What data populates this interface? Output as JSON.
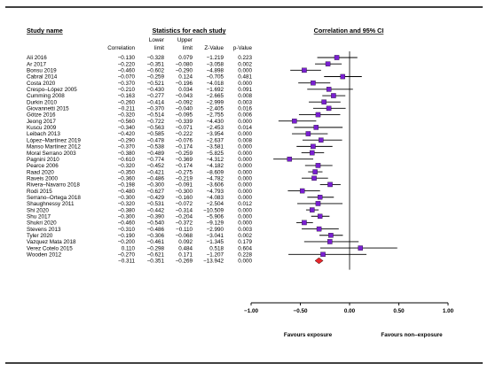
{
  "chart_data": {
    "type": "forest",
    "headers": {
      "study": "Study name",
      "stats_group": "Statistics for each study",
      "plot_title": "Correlation and 95% CI",
      "correlation": "Correlation",
      "lower_1": "Lower",
      "lower_2": "limit",
      "upper_1": "Upper",
      "upper_2": "limit",
      "z": "Z-Value",
      "p": "p-Value"
    },
    "studies": [
      {
        "name": "Ali 2016",
        "r": "−0.130",
        "lower": "−0.328",
        "upper": "0.079",
        "z": "−1.219",
        "p": "0.223",
        "rv": -0.13,
        "lv": -0.328,
        "uv": 0.079
      },
      {
        "name": "Ar 2017",
        "r": "−0.220",
        "lower": "−0.351",
        "upper": "−0.080",
        "z": "−3.058",
        "p": "0.002",
        "rv": -0.22,
        "lv": -0.351,
        "uv": -0.08
      },
      {
        "name": "Bonsu 2019",
        "r": "−0.460",
        "lower": "−0.602",
        "upper": "−0.290",
        "z": "−4.898",
        "p": "0.000",
        "rv": -0.46,
        "lv": -0.602,
        "uv": -0.29
      },
      {
        "name": "Cabral 2014",
        "r": "−0.070",
        "lower": "−0.259",
        "upper": "0.124",
        "z": "−0.705",
        "p": "0.481",
        "rv": -0.07,
        "lv": -0.259,
        "uv": 0.124
      },
      {
        "name": "Costa 2020",
        "r": "−0.370",
        "lower": "−0.521",
        "upper": "−0.196",
        "z": "−4.018",
        "p": "0.000",
        "rv": -0.37,
        "lv": -0.521,
        "uv": -0.196
      },
      {
        "name": "Crespo–López 2005",
        "r": "−0.210",
        "lower": "−0.430",
        "upper": "0.034",
        "z": "−1.692",
        "p": "0.091",
        "rv": -0.21,
        "lv": -0.43,
        "uv": 0.034
      },
      {
        "name": "Cumming 2008",
        "r": "−0.163",
        "lower": "−0.277",
        "upper": "−0.043",
        "z": "−2.665",
        "p": "0.008",
        "rv": -0.163,
        "lv": -0.277,
        "uv": -0.043
      },
      {
        "name": "Durkin 2010",
        "r": "−0.260",
        "lower": "−0.414",
        "upper": "−0.092",
        "z": "−2.999",
        "p": "0.003",
        "rv": -0.26,
        "lv": -0.414,
        "uv": -0.092
      },
      {
        "name": "Giovannetti 2015",
        "r": "−0.211",
        "lower": "−0.370",
        "upper": "−0.040",
        "z": "−2.405",
        "p": "0.016",
        "rv": -0.211,
        "lv": -0.37,
        "uv": -0.04
      },
      {
        "name": "Götze 2016",
        "r": "−0.320",
        "lower": "−0.514",
        "upper": "−0.095",
        "z": "−2.755",
        "p": "0.006",
        "rv": -0.32,
        "lv": -0.514,
        "uv": -0.095
      },
      {
        "name": "Jeong 2017",
        "r": "−0.560",
        "lower": "−0.722",
        "upper": "−0.339",
        "z": "−4.430",
        "p": "0.000",
        "rv": -0.56,
        "lv": -0.722,
        "uv": -0.339
      },
      {
        "name": "Kuscu 2009",
        "r": "−0.340",
        "lower": "−0.563",
        "upper": "−0.071",
        "z": "−2.453",
        "p": "0.014",
        "rv": -0.34,
        "lv": -0.563,
        "uv": -0.071
      },
      {
        "name": "Leibach 2013",
        "r": "−0.420",
        "lower": "−0.585",
        "upper": "−0.222",
        "z": "−3.954",
        "p": "0.000",
        "rv": -0.42,
        "lv": -0.585,
        "uv": -0.222
      },
      {
        "name": "López–Martínez 2019",
        "r": "−0.290",
        "lower": "−0.478",
        "upper": "−0.076",
        "z": "−2.637",
        "p": "0.008",
        "rv": -0.29,
        "lv": -0.478,
        "uv": -0.076
      },
      {
        "name": "Manso Martínez 2012",
        "r": "−0.370",
        "lower": "−0.538",
        "upper": "−0.174",
        "z": "−3.581",
        "p": "0.000",
        "rv": -0.37,
        "lv": -0.538,
        "uv": -0.174
      },
      {
        "name": "Moral Serrano 2003",
        "r": "−0.380",
        "lower": "−0.489",
        "upper": "−0.259",
        "z": "−5.825",
        "p": "0.000",
        "rv": -0.38,
        "lv": -0.489,
        "uv": -0.259
      },
      {
        "name": "Pagnini 2010",
        "r": "−0.610",
        "lower": "−0.774",
        "upper": "−0.369",
        "z": "−4.312",
        "p": "0.000",
        "rv": -0.61,
        "lv": -0.774,
        "uv": -0.369
      },
      {
        "name": "Pearce 2006",
        "r": "−0.320",
        "lower": "−0.452",
        "upper": "−0.174",
        "z": "−4.182",
        "p": "0.000",
        "rv": -0.32,
        "lv": -0.452,
        "uv": -0.174
      },
      {
        "name": "Raad 2020",
        "r": "−0.350",
        "lower": "−0.421",
        "upper": "−0.275",
        "z": "−8.609",
        "p": "0.000",
        "rv": -0.35,
        "lv": -0.421,
        "uv": -0.275
      },
      {
        "name": "Raveis 2000",
        "r": "−0.360",
        "lower": "−0.486",
        "upper": "−0.219",
        "z": "−4.782",
        "p": "0.000",
        "rv": -0.36,
        "lv": -0.486,
        "uv": -0.219
      },
      {
        "name": "Rivera–Navarro 2018",
        "r": "−0.198",
        "lower": "−0.300",
        "upper": "−0.091",
        "z": "−3.606",
        "p": "0.000",
        "rv": -0.198,
        "lv": -0.3,
        "uv": -0.091
      },
      {
        "name": "Rodi 2015",
        "r": "−0.480",
        "lower": "−0.627",
        "upper": "−0.300",
        "z": "−4.793",
        "p": "0.000",
        "rv": -0.48,
        "lv": -0.627,
        "uv": -0.3
      },
      {
        "name": "Serrano–Ortega 2018",
        "r": "−0.300",
        "lower": "−0.429",
        "upper": "−0.160",
        "z": "−4.083",
        "p": "0.000",
        "rv": -0.3,
        "lv": -0.429,
        "uv": -0.16
      },
      {
        "name": "Shaughnessy 2011",
        "r": "−0.320",
        "lower": "−0.531",
        "upper": "−0.072",
        "z": "−2.504",
        "p": "0.012",
        "rv": -0.32,
        "lv": -0.531,
        "uv": -0.072
      },
      {
        "name": "Shi 2020",
        "r": "−0.380",
        "lower": "−0.442",
        "upper": "−0.314",
        "z": "−10.509",
        "p": "0.000",
        "rv": -0.38,
        "lv": -0.442,
        "uv": -0.314
      },
      {
        "name": "Shu 2017",
        "r": "−0.300",
        "lower": "−0.390",
        "upper": "−0.204",
        "z": "−5.906",
        "p": "0.000",
        "rv": -0.3,
        "lv": -0.39,
        "uv": -0.204
      },
      {
        "name": "Shukri 2020",
        "r": "−0.460",
        "lower": "−0.540",
        "upper": "−0.372",
        "z": "−9.129",
        "p": "0.000",
        "rv": -0.46,
        "lv": -0.54,
        "uv": -0.372
      },
      {
        "name": "Stevens 2013",
        "r": "−0.310",
        "lower": "−0.486",
        "upper": "−0.110",
        "z": "−2.990",
        "p": "0.003",
        "rv": -0.31,
        "lv": -0.486,
        "uv": -0.11
      },
      {
        "name": "Tyler 2020",
        "r": "−0.190",
        "lower": "−0.306",
        "upper": "−0.068",
        "z": "−3.041",
        "p": "0.002",
        "rv": -0.19,
        "lv": -0.306,
        "uv": -0.068
      },
      {
        "name": "Vazquez Mata 2018",
        "r": "−0.200",
        "lower": "−0.461",
        "upper": "0.092",
        "z": "−1.345",
        "p": "0.179",
        "rv": -0.2,
        "lv": -0.461,
        "uv": 0.092
      },
      {
        "name": "Verez Cotelo 2015",
        "r": "0.110",
        "lower": "−0.298",
        "upper": "0.484",
        "z": "0.518",
        "p": "0.604",
        "rv": 0.11,
        "lv": -0.298,
        "uv": 0.484
      },
      {
        "name": "Wooden 2012",
        "r": "−0.270",
        "lower": "−0.621",
        "upper": "0.171",
        "z": "−1.207",
        "p": "0.228",
        "rv": -0.27,
        "lv": -0.621,
        "uv": 0.171
      }
    ],
    "summary": {
      "r": "−0.311",
      "lower": "−0.351",
      "upper": "−0.269",
      "z": "−13.942",
      "p": "0.000",
      "rv": -0.311,
      "lv": -0.351,
      "uv": -0.269
    },
    "x_ticks": [
      "−1.00",
      "−0.50",
      "0.00",
      "0.50",
      "1.00"
    ],
    "x_tick_values": [
      -1.0,
      -0.5,
      0.0,
      0.5,
      1.0
    ],
    "xlim": [
      -1.0,
      1.0
    ],
    "favours_left": "Favours exposure",
    "favours_right": "Favours non–exposure",
    "colors": {
      "marker": "#7a1fd1",
      "summary": "#e8262b",
      "lines": "#000000"
    }
  }
}
